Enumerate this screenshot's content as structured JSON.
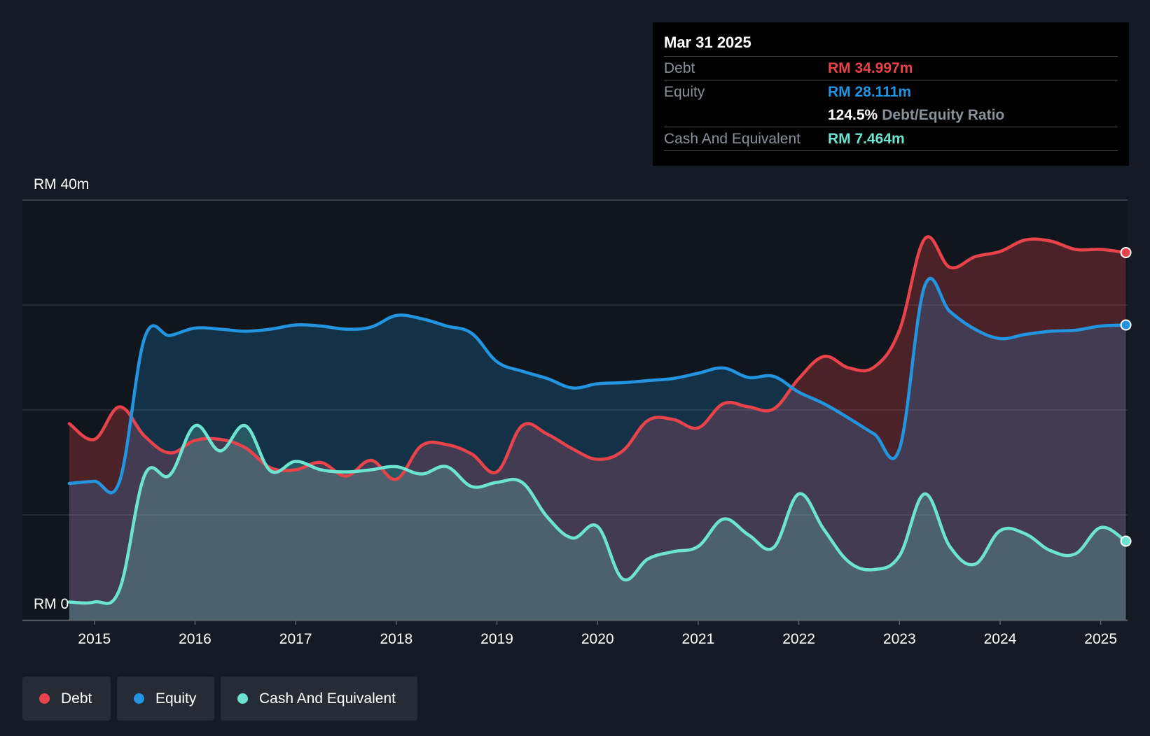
{
  "tooltip": {
    "date": "Mar 31 2025",
    "debt_label": "Debt",
    "debt_value": "RM 34.997m",
    "equity_label": "Equity",
    "equity_value": "RM 28.111m",
    "ratio_value": "124.5%",
    "ratio_label": "Debt/Equity Ratio",
    "cash_label": "Cash And Equivalent",
    "cash_value": "RM 7.464m"
  },
  "legend": {
    "debt": "Debt",
    "equity": "Equity",
    "cash": "Cash And Equivalent"
  },
  "colors": {
    "background": "#151b24",
    "debt": "#e8434a",
    "equity": "#2394df",
    "cash": "#6de4d1",
    "grid": "#3a4049",
    "axis_text": "#ffffff"
  },
  "chart_data": {
    "type": "area",
    "title": "",
    "xlabel": "",
    "ylabel": "",
    "ylim": [
      0,
      40
    ],
    "y_tick_labels": [
      "RM 0",
      "RM 40m"
    ],
    "x_ticks": [
      2015,
      2016,
      2017,
      2018,
      2019,
      2020,
      2021,
      2022,
      2023,
      2024,
      2025
    ],
    "x_tick_labels": [
      "2015",
      "2016",
      "2017",
      "2018",
      "2019",
      "2020",
      "2021",
      "2022",
      "2023",
      "2024",
      "2025"
    ],
    "xlim": [
      2014.73,
      2025.26
    ],
    "series": [
      {
        "name": "Debt",
        "points": [
          [
            2014.75,
            18.7
          ],
          [
            2015.0,
            17.2
          ],
          [
            2015.25,
            20.3
          ],
          [
            2015.5,
            17.5
          ],
          [
            2015.75,
            15.9
          ],
          [
            2016.0,
            17.1
          ],
          [
            2016.25,
            17.2
          ],
          [
            2016.5,
            16.4
          ],
          [
            2016.75,
            14.5
          ],
          [
            2017.0,
            14.3
          ],
          [
            2017.25,
            15.0
          ],
          [
            2017.5,
            13.7
          ],
          [
            2017.75,
            15.2
          ],
          [
            2018.0,
            13.4
          ],
          [
            2018.25,
            16.6
          ],
          [
            2018.5,
            16.7
          ],
          [
            2018.75,
            15.8
          ],
          [
            2019.0,
            14.1
          ],
          [
            2019.25,
            18.5
          ],
          [
            2019.5,
            17.7
          ],
          [
            2019.75,
            16.3
          ],
          [
            2020.0,
            15.3
          ],
          [
            2020.25,
            16.1
          ],
          [
            2020.5,
            19.0
          ],
          [
            2020.75,
            19.1
          ],
          [
            2021.0,
            18.3
          ],
          [
            2021.25,
            20.6
          ],
          [
            2021.5,
            20.3
          ],
          [
            2021.75,
            20.1
          ],
          [
            2022.0,
            23.0
          ],
          [
            2022.25,
            25.1
          ],
          [
            2022.5,
            24.0
          ],
          [
            2022.75,
            24.1
          ],
          [
            2023.0,
            27.6
          ],
          [
            2023.25,
            36.3
          ],
          [
            2023.5,
            33.6
          ],
          [
            2023.75,
            34.6
          ],
          [
            2024.0,
            35.1
          ],
          [
            2024.25,
            36.2
          ],
          [
            2024.5,
            36.1
          ],
          [
            2024.75,
            35.3
          ],
          [
            2025.0,
            35.3
          ],
          [
            2025.25,
            35.0
          ]
        ]
      },
      {
        "name": "Equity",
        "points": [
          [
            2014.75,
            13.0
          ],
          [
            2015.0,
            13.2
          ],
          [
            2015.25,
            13.2
          ],
          [
            2015.5,
            26.9
          ],
          [
            2015.75,
            27.1
          ],
          [
            2016.0,
            27.8
          ],
          [
            2016.25,
            27.7
          ],
          [
            2016.5,
            27.5
          ],
          [
            2016.75,
            27.7
          ],
          [
            2017.0,
            28.1
          ],
          [
            2017.25,
            28.0
          ],
          [
            2017.5,
            27.7
          ],
          [
            2017.75,
            27.9
          ],
          [
            2018.0,
            29.0
          ],
          [
            2018.25,
            28.7
          ],
          [
            2018.5,
            28.0
          ],
          [
            2018.75,
            27.3
          ],
          [
            2019.0,
            24.6
          ],
          [
            2019.25,
            23.7
          ],
          [
            2019.5,
            23.0
          ],
          [
            2019.75,
            22.1
          ],
          [
            2020.0,
            22.5
          ],
          [
            2020.25,
            22.6
          ],
          [
            2020.5,
            22.8
          ],
          [
            2020.75,
            23.0
          ],
          [
            2021.0,
            23.5
          ],
          [
            2021.25,
            24.0
          ],
          [
            2021.5,
            23.1
          ],
          [
            2021.75,
            23.2
          ],
          [
            2022.0,
            21.7
          ],
          [
            2022.25,
            20.6
          ],
          [
            2022.5,
            19.2
          ],
          [
            2022.75,
            17.7
          ],
          [
            2023.0,
            16.3
          ],
          [
            2023.25,
            31.8
          ],
          [
            2023.5,
            29.4
          ],
          [
            2023.75,
            27.7
          ],
          [
            2024.0,
            26.8
          ],
          [
            2024.25,
            27.2
          ],
          [
            2024.5,
            27.5
          ],
          [
            2024.75,
            27.6
          ],
          [
            2025.0,
            28.0
          ],
          [
            2025.25,
            28.1
          ]
        ]
      },
      {
        "name": "Cash And Equivalent",
        "points": [
          [
            2014.75,
            1.7
          ],
          [
            2015.0,
            1.7
          ],
          [
            2015.25,
            2.9
          ],
          [
            2015.5,
            13.8
          ],
          [
            2015.75,
            13.8
          ],
          [
            2016.0,
            18.5
          ],
          [
            2016.25,
            16.1
          ],
          [
            2016.5,
            18.5
          ],
          [
            2016.75,
            14.2
          ],
          [
            2017.0,
            15.1
          ],
          [
            2017.25,
            14.3
          ],
          [
            2017.5,
            14.1
          ],
          [
            2017.75,
            14.3
          ],
          [
            2018.0,
            14.6
          ],
          [
            2018.25,
            13.9
          ],
          [
            2018.5,
            14.6
          ],
          [
            2018.75,
            12.7
          ],
          [
            2019.0,
            13.1
          ],
          [
            2019.25,
            13.1
          ],
          [
            2019.5,
            9.8
          ],
          [
            2019.75,
            7.8
          ],
          [
            2020.0,
            8.9
          ],
          [
            2020.25,
            3.9
          ],
          [
            2020.5,
            5.8
          ],
          [
            2020.75,
            6.5
          ],
          [
            2021.0,
            7.0
          ],
          [
            2021.25,
            9.6
          ],
          [
            2021.5,
            8.1
          ],
          [
            2021.75,
            6.9
          ],
          [
            2022.0,
            12.0
          ],
          [
            2022.25,
            8.6
          ],
          [
            2022.5,
            5.5
          ],
          [
            2022.75,
            4.8
          ],
          [
            2023.0,
            6.1
          ],
          [
            2023.25,
            12.0
          ],
          [
            2023.5,
            7.0
          ],
          [
            2023.75,
            5.3
          ],
          [
            2024.0,
            8.5
          ],
          [
            2024.25,
            8.2
          ],
          [
            2024.5,
            6.6
          ],
          [
            2024.75,
            6.3
          ],
          [
            2025.0,
            8.8
          ],
          [
            2025.25,
            7.5
          ]
        ]
      }
    ]
  }
}
